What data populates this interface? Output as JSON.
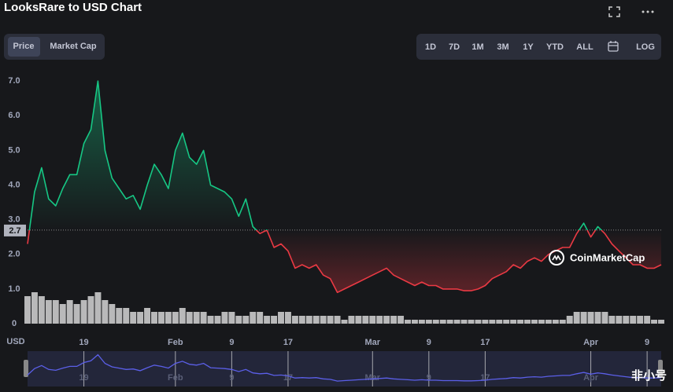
{
  "header": {
    "title": "LooksRare to USD Chart"
  },
  "toggles": [
    "Price",
    "Market Cap"
  ],
  "ranges": [
    "1D",
    "7D",
    "1M",
    "3M",
    "1Y",
    "YTD",
    "ALL",
    "LOG"
  ],
  "watermark": "CoinMarketCap",
  "corner_mark": "非小号",
  "chart_data": {
    "type": "line",
    "currency_label": "USD",
    "categories": [
      null,
      null,
      null,
      null,
      null,
      null,
      null,
      null,
      "19",
      null,
      null,
      null,
      null,
      null,
      null,
      null,
      null,
      null,
      null,
      null,
      null,
      "Feb",
      null,
      null,
      null,
      null,
      null,
      null,
      null,
      "9",
      null,
      null,
      null,
      null,
      null,
      null,
      null,
      "17",
      null,
      null,
      null,
      null,
      null,
      null,
      null,
      null,
      null,
      null,
      null,
      "Mar",
      null,
      null,
      null,
      null,
      null,
      null,
      null,
      "9",
      null,
      null,
      null,
      null,
      null,
      null,
      null,
      "17",
      null,
      null,
      null,
      null,
      null,
      null,
      null,
      null,
      null,
      null,
      null,
      null,
      null,
      null,
      "Apr",
      null,
      null,
      null,
      null,
      null,
      null,
      null,
      "9",
      null,
      null
    ],
    "series": [
      {
        "name": "Price",
        "values": [
          2.3,
          3.8,
          4.5,
          3.6,
          3.4,
          3.9,
          4.3,
          4.3,
          5.2,
          5.6,
          7.0,
          5.0,
          4.2,
          3.9,
          3.6,
          3.7,
          3.3,
          4.0,
          4.6,
          4.3,
          3.9,
          5.0,
          5.5,
          4.8,
          4.6,
          5.0,
          4.0,
          3.9,
          3.8,
          3.6,
          3.1,
          3.6,
          2.8,
          2.6,
          2.7,
          2.2,
          2.3,
          2.1,
          1.6,
          1.7,
          1.6,
          1.7,
          1.4,
          1.3,
          0.9,
          1.0,
          1.1,
          1.2,
          1.3,
          1.4,
          1.5,
          1.6,
          1.4,
          1.3,
          1.2,
          1.1,
          1.2,
          1.1,
          1.1,
          1.0,
          1.0,
          1.0,
          0.95,
          0.95,
          1.0,
          1.1,
          1.3,
          1.4,
          1.5,
          1.7,
          1.6,
          1.8,
          1.9,
          1.8,
          2.0,
          2.1,
          2.2,
          2.2,
          2.6,
          2.9,
          2.5,
          2.8,
          2.6,
          2.3,
          2.1,
          1.9,
          1.7,
          1.7,
          1.6,
          1.6,
          1.7
        ]
      }
    ],
    "volume": [
      7,
      8,
      7,
      6,
      6,
      5,
      6,
      5,
      6,
      7,
      8,
      6,
      5,
      4,
      4,
      3,
      3,
      4,
      3,
      3,
      3,
      3,
      4,
      3,
      3,
      3,
      2,
      2,
      3,
      3,
      2,
      2,
      3,
      3,
      2,
      2,
      3,
      3,
      2,
      2,
      2,
      2,
      2,
      2,
      2,
      1,
      2,
      2,
      2,
      2,
      2,
      2,
      2,
      2,
      1,
      1,
      1,
      1,
      1,
      1,
      1,
      1,
      1,
      1,
      1,
      1,
      1,
      1,
      1,
      1,
      1,
      1,
      1,
      1,
      1,
      1,
      1,
      2,
      3,
      3,
      3,
      3,
      3,
      2,
      2,
      2,
      2,
      2,
      2,
      1,
      1
    ],
    "baseline": 2.7,
    "up_color": "#16c784",
    "down_color": "#ea3943",
    "volume_color": "#d6d6d6",
    "navigator_color": "#5b5fe8",
    "ylim": [
      0,
      7.3
    ],
    "yticks": [
      0,
      {
        "value": 1,
        "label": "1.0"
      },
      {
        "value": 2,
        "label": "2.0"
      },
      {
        "value": 3,
        "label": "3.0"
      },
      {
        "value": 4,
        "label": "4.0"
      },
      {
        "value": 5,
        "label": "5.0"
      },
      {
        "value": 6,
        "label": "6.0"
      },
      {
        "value": 7,
        "label": "7.0"
      }
    ],
    "grid": false
  }
}
